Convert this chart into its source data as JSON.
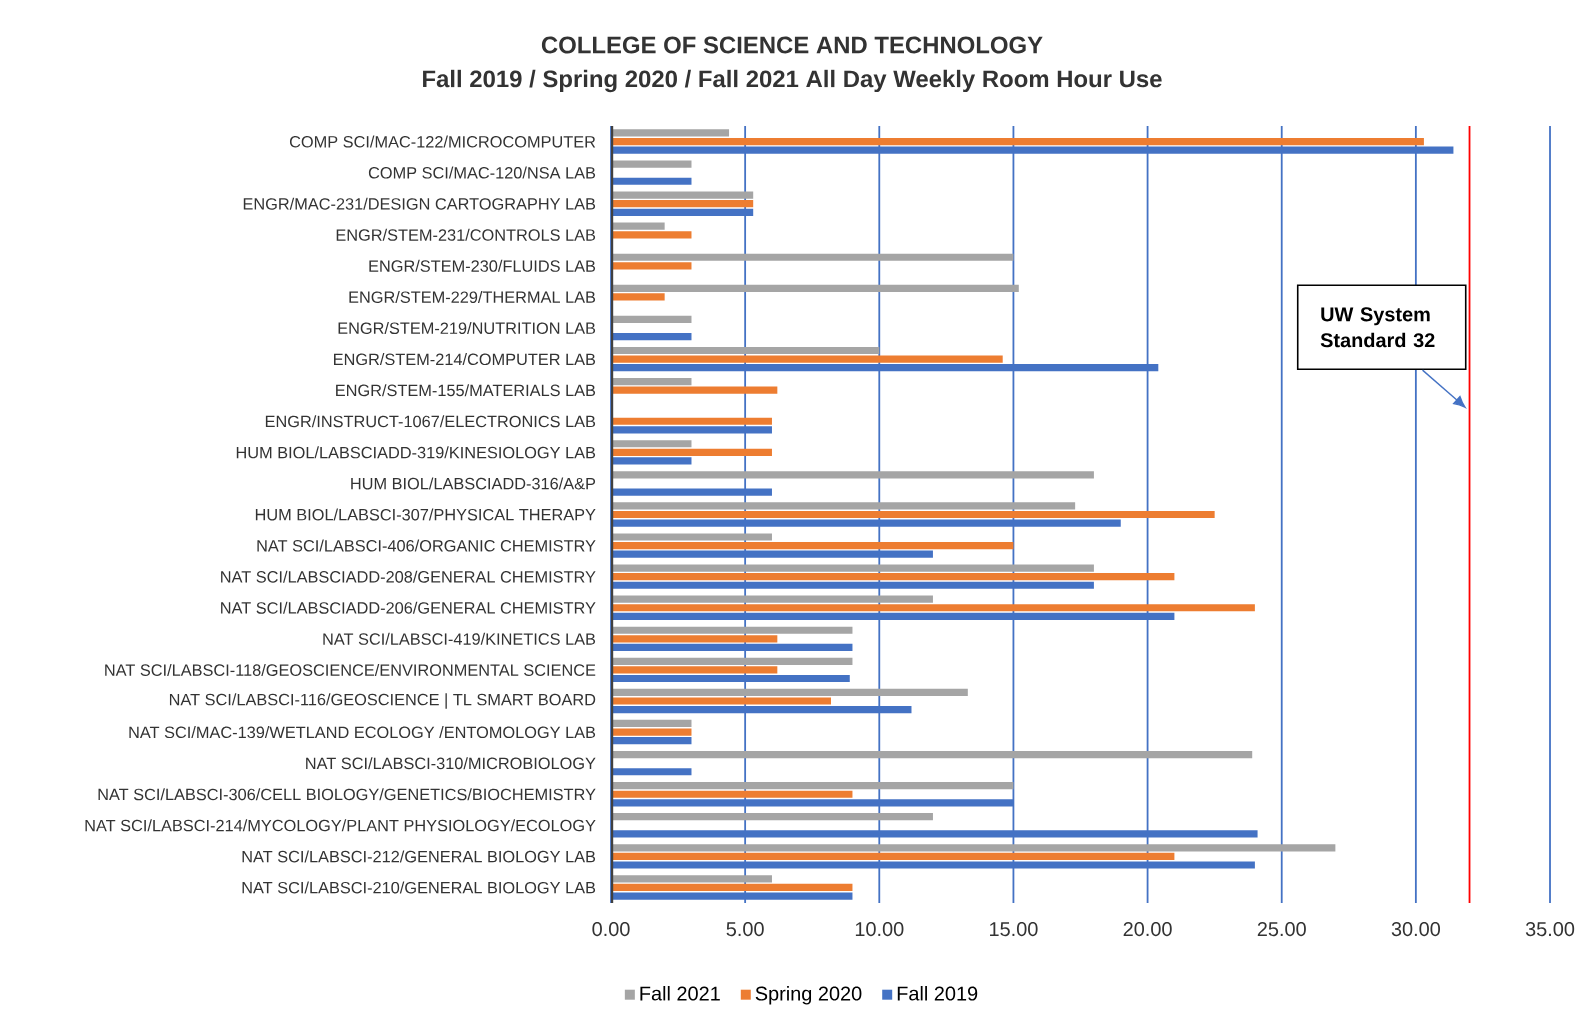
{
  "chart_data": {
    "type": "bar",
    "orientation": "horizontal",
    "title": "COLLEGE OF SCIENCE AND TECHNOLOGY",
    "subtitle": "Fall 2019 / Spring 2020 / Fall 2021 All Day Weekly Room Hour Use",
    "categories": [
      "COMP SCI/MAC-122/MICROCOMPUTER",
      "COMP SCI/MAC-120/NSA LAB",
      "ENGR/MAC-231/DESIGN CARTOGRAPHY LAB",
      "ENGR/STEM-231/CONTROLS LAB",
      "ENGR/STEM-230/FLUIDS LAB",
      "ENGR/STEM-229/THERMAL LAB",
      "ENGR/STEM-219/NUTRITION LAB",
      "ENGR/STEM-214/COMPUTER LAB",
      "ENGR/STEM-155/MATERIALS LAB",
      "ENGR/INSTRUCT-1067/ELECTRONICS LAB",
      "HUM BIOL/LABSCIADD-319/KINESIOLOGY LAB",
      "HUM BIOL/LABSCIADD-316/A&P",
      "HUM BIOL/LABSCI-307/PHYSICAL THERAPY",
      "NAT SCI/LABSCI-406/ORGANIC CHEMISTRY",
      "NAT SCI/LABSCIADD-208/GENERAL CHEMISTRY",
      "NAT SCI/LABSCIADD-206/GENERAL CHEMISTRY",
      "NAT SCI/LABSCI-419/KINETICS LAB",
      "NAT SCI/LABSCI-118/GEOSCIENCE/ENVIRONMENTAL SCIENCE",
      "NAT SCI/LABSCI-116/GEOSCIENCE | TL SMART BOARD",
      "NAT SCI/MAC-139/WETLAND ECOLOGY /ENTOMOLOGY LAB",
      "NAT SCI/LABSCI-310/MICROBIOLOGY",
      "NAT SCI/LABSCI-306/CELL BIOLOGY/GENETICS/BIOCHEMISTRY",
      "NAT SCI/LABSCI-214/MYCOLOGY/PLANT PHYSIOLOGY/ECOLOGY",
      "NAT SCI/LABSCI-212/GENERAL BIOLOGY LAB",
      "NAT SCI/LABSCI-210/GENERAL BIOLOGY LAB"
    ],
    "series": [
      {
        "name": "Fall 2021",
        "color": "#a5a5a5",
        "values": [
          4.4,
          3,
          5.3,
          2,
          15,
          15.2,
          3,
          10,
          3,
          null,
          3,
          18,
          17.3,
          6,
          18,
          12,
          9,
          9,
          13.3,
          3,
          23.9,
          15,
          12,
          27,
          6
        ]
      },
      {
        "name": "Spring 2020",
        "color": "#ed7d31",
        "values": [
          30.3,
          null,
          5.3,
          3,
          3,
          2,
          null,
          14.6,
          6.2,
          6,
          6,
          null,
          22.5,
          15,
          21,
          24,
          6.2,
          6.2,
          8.2,
          3,
          null,
          9,
          null,
          21,
          9
        ]
      },
      {
        "name": "Fall 2019",
        "color": "#4472c4",
        "values": [
          31.4,
          3,
          5.3,
          null,
          null,
          null,
          3,
          20.4,
          null,
          6,
          3,
          6,
          19,
          12,
          18,
          21,
          9,
          8.9,
          11.2,
          3,
          3,
          15,
          24.1,
          24,
          9
        ]
      }
    ],
    "xlim": [
      0,
      35
    ],
    "xticks": [
      {
        "value": 0,
        "label": "0.00"
      },
      {
        "value": 5,
        "label": "5.00"
      },
      {
        "value": 10,
        "label": "10.00"
      },
      {
        "value": 15,
        "label": "15.00"
      },
      {
        "value": 20,
        "label": "20.00"
      },
      {
        "value": 25,
        "label": "25.00"
      },
      {
        "value": 30,
        "label": "30.00"
      },
      {
        "value": 35,
        "label": "35.00"
      }
    ],
    "grid": "x",
    "legend": "bottom",
    "ref_lines": [
      {
        "axis": "x",
        "value": 32,
        "label": "UW System Standard 32",
        "color": "#ff0000"
      }
    ]
  }
}
